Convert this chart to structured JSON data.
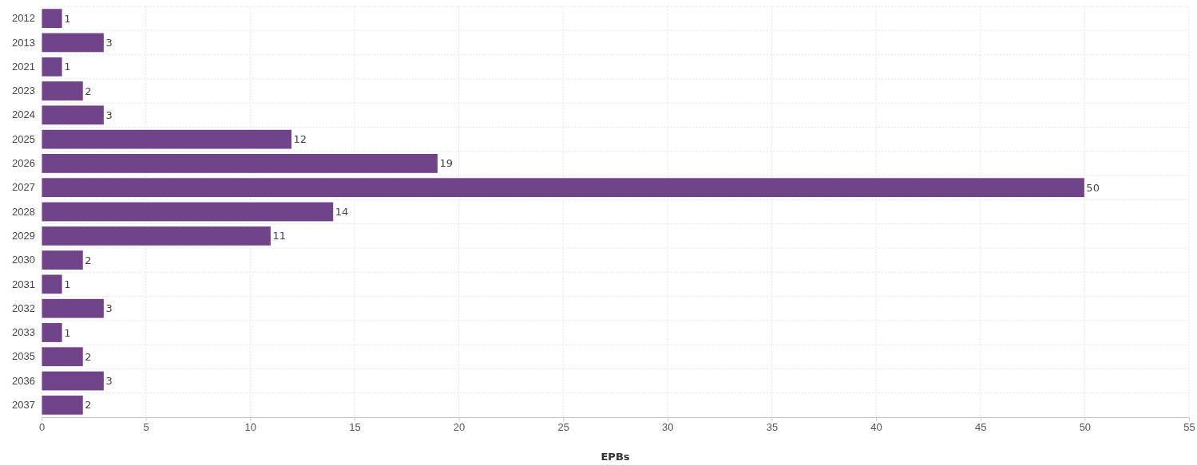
{
  "chart_data": {
    "type": "bar",
    "orientation": "horizontal",
    "xlabel": "EPBs",
    "categories": [
      "2012",
      "2013",
      "2021",
      "2023",
      "2024",
      "2025",
      "2026",
      "2027",
      "2028",
      "2029",
      "2030",
      "2031",
      "2032",
      "2033",
      "2035",
      "2036",
      "2037"
    ],
    "values": [
      1,
      3,
      1,
      2,
      3,
      12,
      19,
      50,
      14,
      11,
      2,
      1,
      3,
      1,
      2,
      3,
      2
    ],
    "color": "#6f4489",
    "xlim": [
      0,
      55
    ],
    "xticks": [
      0,
      5,
      10,
      15,
      20,
      25,
      30,
      35,
      40,
      45,
      50,
      55
    ],
    "grid": true,
    "data_labels": true
  }
}
